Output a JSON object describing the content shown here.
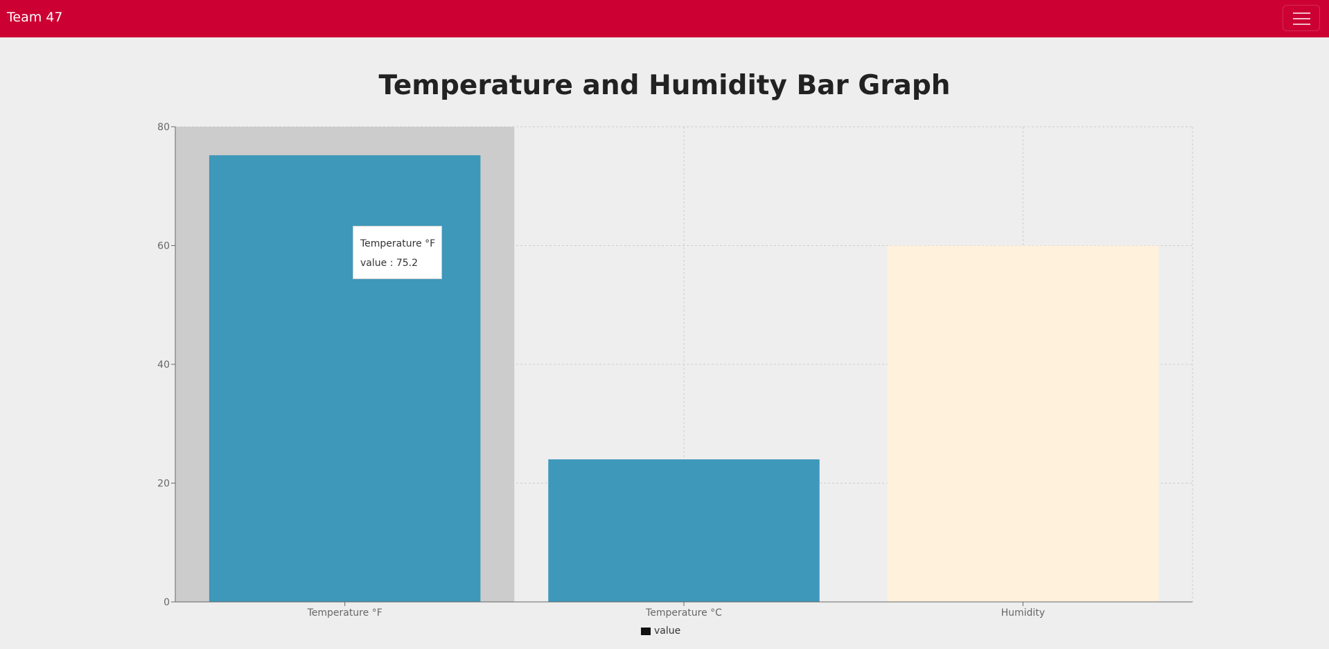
{
  "navbar": {
    "brand": "Team 47",
    "menu_icon": "hamburger-menu-icon",
    "color": "#cc0033"
  },
  "page": {
    "title": "Temperature and Humidity Bar Graph"
  },
  "chart_data": {
    "type": "bar",
    "title": "Temperature and Humidity Bar Graph",
    "categories": [
      "Temperature °F",
      "Temperature °C",
      "Humidity"
    ],
    "series": [
      {
        "name": "value",
        "values": [
          75.2,
          24,
          60
        ]
      }
    ],
    "bar_colors": [
      "#3d98ba",
      "#3d98ba",
      "#fff1dc"
    ],
    "ylim": [
      0,
      80
    ],
    "yticks": [
      "0",
      "20",
      "40",
      "60",
      "80"
    ],
    "xlabel": "",
    "ylabel": "",
    "grid": true,
    "legend": "bottom-center",
    "highlighted_category": 0
  },
  "tooltip": {
    "label": "Temperature °F",
    "value_text": "value : 75.2"
  },
  "legend": {
    "items": [
      {
        "label": "value",
        "color": "#111111"
      }
    ]
  }
}
